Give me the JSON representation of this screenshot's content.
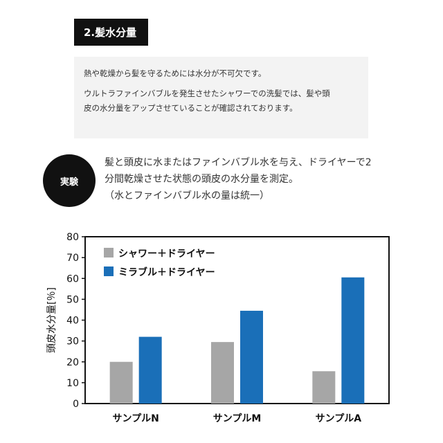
{
  "section": {
    "title": "2.髪水分量"
  },
  "info": {
    "paragraphs": [
      "熱や乾燥から髪を守るためには水分が不可欠です。",
      "ウルトラファインバブルを発生させたシャワーでの洗髪では、髪や頭",
      "皮の水分量をアップさせていることが確認されております。"
    ]
  },
  "experiment": {
    "badge": "実験",
    "lines": [
      "髪と頭皮に水またはファインバブル水を与え、ドライヤーで2",
      "分間乾燥させた状態の頭皮の水分量を測定。",
      "（水とファインバブル水の量は統一）"
    ]
  },
  "chart_data": {
    "type": "bar",
    "categories": [
      "サンプルN",
      "サンプルM",
      "サンプルA"
    ],
    "series": [
      {
        "name": "シャワー＋ドライヤー",
        "values": [
          20,
          29.5,
          15.5
        ],
        "color": "#a6a6a6"
      },
      {
        "name": "ミラブル＋ドライヤー",
        "values": [
          32,
          44.5,
          60.5
        ],
        "color": "#1a6fb8"
      }
    ],
    "ylabel": "頭皮水分量[％]",
    "ylim": [
      0,
      80
    ],
    "yticks": [
      0,
      10,
      20,
      30,
      40,
      50,
      60,
      70,
      80
    ],
    "legend": "top-left",
    "grid": false
  }
}
